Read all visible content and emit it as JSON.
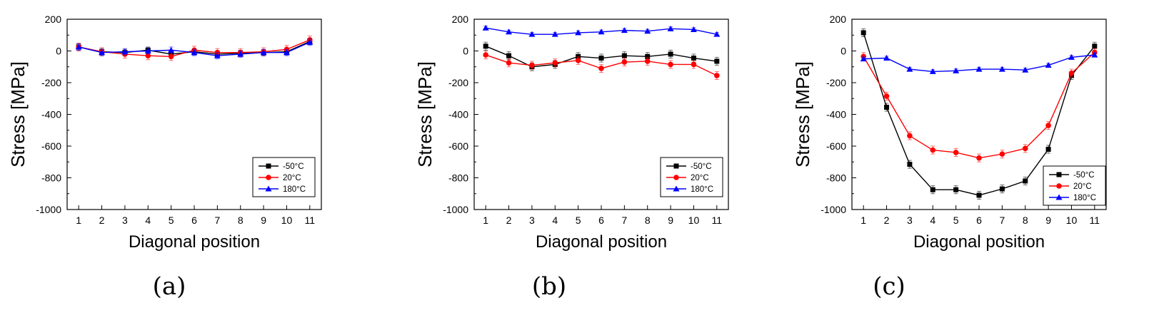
{
  "series_colors": {
    "-50°C": "#000000",
    "20°C": "#ff0000",
    "180°C": "#0000ff"
  },
  "chart_data": [
    {
      "type": "line",
      "panel_label": "(a)",
      "xlabel": "Diagonal position",
      "ylabel": "Stress [MPa]",
      "x": [
        1,
        2,
        3,
        4,
        5,
        6,
        7,
        8,
        9,
        10,
        11
      ],
      "xlim": [
        0.5,
        11.5
      ],
      "ylim": [
        -1000,
        200
      ],
      "yticks": [
        200,
        0,
        -200,
        -400,
        -600,
        -800,
        -1000
      ],
      "legend_position": "bottom-right",
      "series": [
        {
          "name": "-50°C",
          "marker": "square",
          "color": "#000000",
          "values": [
            25,
            -5,
            -10,
            5,
            -20,
            -5,
            -20,
            -15,
            -10,
            -5,
            60
          ],
          "errors": [
            20,
            20,
            20,
            20,
            20,
            20,
            20,
            20,
            20,
            20,
            20
          ]
        },
        {
          "name": "20°C",
          "marker": "circle",
          "color": "#ff0000",
          "values": [
            25,
            -5,
            -20,
            -30,
            -35,
            5,
            -10,
            -10,
            -5,
            10,
            70
          ],
          "errors": [
            25,
            25,
            25,
            25,
            25,
            25,
            25,
            25,
            25,
            25,
            25
          ]
        },
        {
          "name": "180°C",
          "marker": "triangle",
          "color": "#0000ff",
          "values": [
            25,
            -10,
            -5,
            0,
            5,
            -10,
            -30,
            -20,
            -10,
            -10,
            55
          ],
          "errors": [
            20,
            20,
            20,
            20,
            20,
            20,
            20,
            20,
            20,
            20,
            20
          ]
        }
      ]
    },
    {
      "type": "line",
      "panel_label": "(b)",
      "xlabel": "Diagonal position",
      "ylabel": "Stress [MPa]",
      "x": [
        1,
        2,
        3,
        4,
        5,
        6,
        7,
        8,
        9,
        10,
        11
      ],
      "xlim": [
        0.5,
        11.5
      ],
      "ylim": [
        -1000,
        200
      ],
      "yticks": [
        200,
        0,
        -200,
        -400,
        -600,
        -800,
        -1000
      ],
      "legend_position": "bottom-right",
      "series": [
        {
          "name": "-50°C",
          "marker": "square",
          "color": "#000000",
          "values": [
            30,
            -30,
            -100,
            -85,
            -35,
            -45,
            -30,
            -35,
            -20,
            -45,
            -65
          ],
          "errors": [
            25,
            25,
            25,
            25,
            25,
            25,
            25,
            25,
            25,
            25,
            25
          ]
        },
        {
          "name": "20°C",
          "marker": "circle",
          "color": "#ff0000",
          "values": [
            -25,
            -75,
            -90,
            -75,
            -60,
            -110,
            -70,
            -65,
            -85,
            -85,
            -155
          ],
          "errors": [
            25,
            25,
            25,
            25,
            25,
            25,
            25,
            25,
            25,
            25,
            25
          ]
        },
        {
          "name": "180°C",
          "marker": "triangle",
          "color": "#0000ff",
          "values": [
            145,
            120,
            105,
            105,
            115,
            120,
            130,
            125,
            140,
            135,
            105
          ],
          "errors": [
            12,
            12,
            12,
            12,
            12,
            12,
            12,
            12,
            12,
            12,
            12
          ]
        }
      ]
    },
    {
      "type": "line",
      "panel_label": "(c)",
      "xlabel": "Diagonal position",
      "ylabel": "Stress [MPa]",
      "x": [
        1,
        2,
        3,
        4,
        5,
        6,
        7,
        8,
        9,
        10,
        11
      ],
      "xlim": [
        0.5,
        11.5
      ],
      "ylim": [
        -1000,
        200
      ],
      "yticks": [
        200,
        0,
        -200,
        -400,
        -600,
        -800,
        -1000
      ],
      "legend_position": "bottom-right",
      "series": [
        {
          "name": "-50°C",
          "marker": "square",
          "color": "#000000",
          "values": [
            115,
            -355,
            -715,
            -875,
            -875,
            -910,
            -870,
            -820,
            -620,
            -155,
            30
          ],
          "errors": [
            25,
            25,
            25,
            25,
            25,
            25,
            25,
            25,
            25,
            25,
            25
          ]
        },
        {
          "name": "20°C",
          "marker": "circle",
          "color": "#ff0000",
          "values": [
            -35,
            -285,
            -535,
            -625,
            -640,
            -675,
            -650,
            -615,
            -470,
            -140,
            -10
          ],
          "errors": [
            25,
            25,
            25,
            25,
            25,
            25,
            25,
            25,
            25,
            25,
            25
          ]
        },
        {
          "name": "180°C",
          "marker": "triangle",
          "color": "#0000ff",
          "values": [
            -50,
            -45,
            -115,
            -130,
            -125,
            -115,
            -115,
            -120,
            -90,
            -40,
            -25
          ],
          "errors": [
            12,
            12,
            12,
            12,
            12,
            12,
            12,
            12,
            12,
            12,
            12
          ]
        }
      ]
    }
  ]
}
